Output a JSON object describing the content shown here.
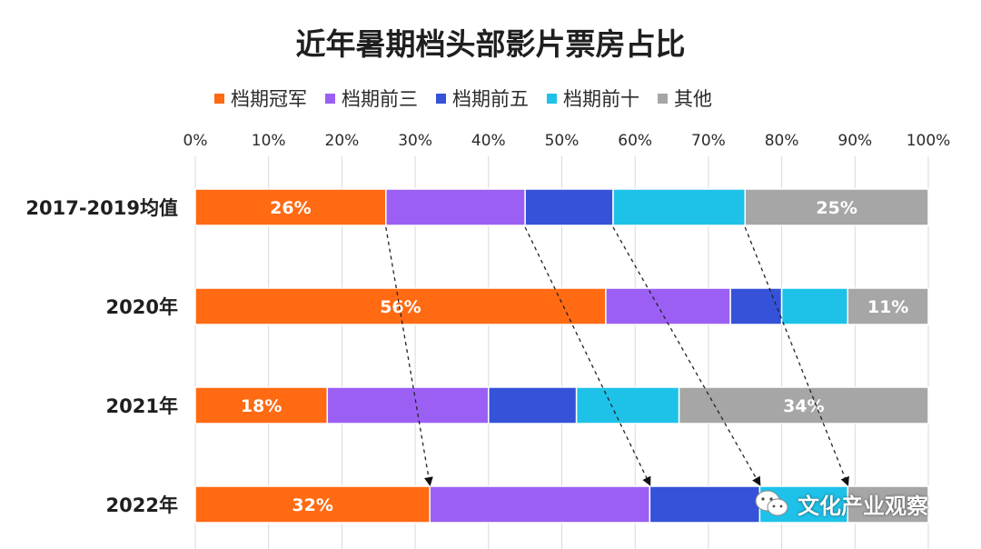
{
  "chart_data": {
    "type": "bar",
    "orientation": "horizontal",
    "stacked": true,
    "title": "近年暑期档头部影片票房占比",
    "categories": [
      "2017-2019均值",
      "2020年",
      "2021年",
      "2022年"
    ],
    "series": [
      {
        "name": "档期冠军",
        "color": "#ff6a13",
        "values": [
          26,
          56,
          18,
          32
        ],
        "labels": [
          "26%",
          "56%",
          "18%",
          "32%"
        ]
      },
      {
        "name": "档期前三",
        "color": "#9b60f3",
        "values": [
          19,
          17,
          22,
          30
        ],
        "labels": [
          "",
          "",
          "",
          ""
        ]
      },
      {
        "name": "档期前五",
        "color": "#3552d8",
        "values": [
          12,
          7,
          12,
          15
        ],
        "labels": [
          "",
          "",
          "",
          ""
        ]
      },
      {
        "name": "档期前十",
        "color": "#1ec2e8",
        "values": [
          18,
          9,
          14,
          12
        ],
        "labels": [
          "",
          "",
          "",
          ""
        ]
      },
      {
        "name": "其他",
        "color": "#a6a6a6",
        "values": [
          25,
          11,
          34,
          11
        ],
        "labels": [
          "25%",
          "11%",
          "34%",
          ""
        ]
      }
    ],
    "xlim": [
      0,
      100
    ],
    "xticks": [
      0,
      10,
      20,
      30,
      40,
      50,
      60,
      70,
      80,
      90,
      100
    ],
    "xtick_labels": [
      "0%",
      "10%",
      "20%",
      "30%",
      "40%",
      "50%",
      "60%",
      "70%",
      "80%",
      "90%",
      "100%"
    ],
    "xaxis_position": "top",
    "grid": true,
    "legend_position": "top",
    "annotations": "dashed arrows from the 2017-2019 segment boundaries down to the 2022 segment boundaries"
  },
  "watermark": {
    "text": "文化产业观察",
    "icon": "wechat-icon"
  }
}
